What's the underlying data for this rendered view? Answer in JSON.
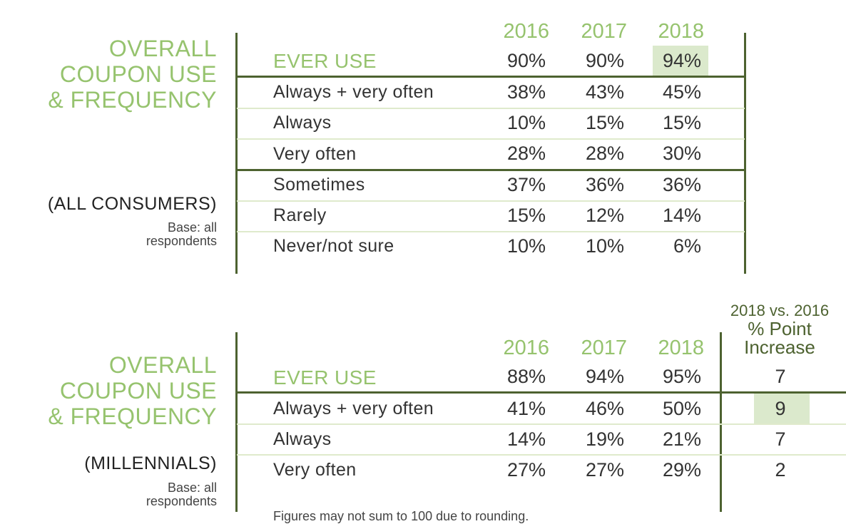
{
  "colors": {
    "accent": "#96c36e",
    "rule": "#4d6230",
    "highlight": "#dbe9cc"
  },
  "chart_data": [
    {
      "type": "table",
      "title": "OVERALL COUPON USE & FREQUENCY",
      "title_lines": [
        "OVERALL",
        "COUPON USE",
        "& FREQUENCY"
      ],
      "subtitle": "(ALL CONSUMERS)",
      "base_note": "Base: all respondents",
      "columns": [
        "2016",
        "2017",
        "2018"
      ],
      "rows": [
        {
          "label": "EVER USE",
          "values": [
            "90%",
            "90%",
            "94%"
          ]
        },
        {
          "label": "Always + very often",
          "values": [
            "38%",
            "43%",
            "45%"
          ]
        },
        {
          "label": "Always",
          "values": [
            "10%",
            "15%",
            "15%"
          ]
        },
        {
          "label": "Very often",
          "values": [
            "28%",
            "28%",
            "30%"
          ]
        },
        {
          "label": "Sometimes",
          "values": [
            "37%",
            "36%",
            "36%"
          ]
        },
        {
          "label": "Rarely",
          "values": [
            "15%",
            "12%",
            "14%"
          ]
        },
        {
          "label": "Never/not sure",
          "values": [
            "10%",
            "10%",
            "6%"
          ]
        }
      ]
    },
    {
      "type": "table",
      "title": "OVERALL COUPON USE & FREQUENCY",
      "title_lines": [
        "OVERALL",
        "COUPON USE",
        "& FREQUENCY"
      ],
      "subtitle": "(MILLENNIALS)",
      "base_note": "Base: all respondents",
      "columns": [
        "2016",
        "2017",
        "2018"
      ],
      "extra_column": {
        "line1": "2018 vs. 2016",
        "line2": "% Point",
        "line3": "Increase"
      },
      "rows": [
        {
          "label": "EVER USE",
          "values": [
            "88%",
            "94%",
            "95%"
          ],
          "increase": "7"
        },
        {
          "label": "Always + very often",
          "values": [
            "41%",
            "46%",
            "50%"
          ],
          "increase": "9"
        },
        {
          "label": "Always",
          "values": [
            "14%",
            "19%",
            "21%"
          ],
          "increase": "7"
        },
        {
          "label": "Very often",
          "values": [
            "27%",
            "27%",
            "29%"
          ],
          "increase": "2"
        }
      ],
      "footnote": "Figures may not sum to 100 due to rounding."
    }
  ]
}
